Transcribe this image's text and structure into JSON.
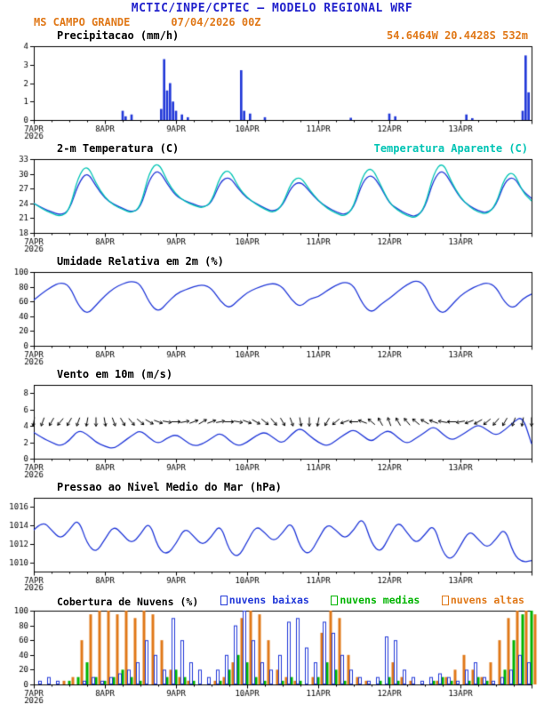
{
  "header": {
    "title": "MCTIC/INPE/CPTEC — MODELO REGIONAL WRF",
    "station": "MS CAMPO GRANDE",
    "run": "07/04/2026 00Z",
    "coords": "54.6464W 20.4428S 532m"
  },
  "colors": {
    "title_blue": "#2222cc",
    "orange": "#e07818",
    "line_blue": "#2138d8",
    "cyan": "#00c4b4",
    "green": "#00b400",
    "axis_black": "#000000"
  },
  "x_axis": {
    "hours_total": 168,
    "minor_step": 6,
    "tick_hours": [
      0,
      24,
      48,
      72,
      96,
      120,
      144
    ],
    "tick_labels": [
      "7APR",
      "8APR",
      "9APR",
      "10APR",
      "11APR",
      "12APR",
      "13APR"
    ],
    "year": "2026"
  },
  "chart_data": [
    {
      "id": "precip",
      "type": "bar",
      "title": "Precipitacao (mm/h)",
      "ylim": [
        0,
        4
      ],
      "yticks": [
        0,
        1,
        2,
        3,
        4
      ],
      "color": "#2138d8",
      "bars": [
        {
          "h": 30,
          "v": 0.5
        },
        {
          "h": 31,
          "v": 0.2
        },
        {
          "h": 33,
          "v": 0.3
        },
        {
          "h": 43,
          "v": 0.6
        },
        {
          "h": 44,
          "v": 3.3
        },
        {
          "h": 45,
          "v": 1.6
        },
        {
          "h": 46,
          "v": 2.0
        },
        {
          "h": 47,
          "v": 1.0
        },
        {
          "h": 48,
          "v": 0.5
        },
        {
          "h": 50,
          "v": 0.3
        },
        {
          "h": 52,
          "v": 0.15
        },
        {
          "h": 70,
          "v": 2.7
        },
        {
          "h": 71,
          "v": 0.5
        },
        {
          "h": 73,
          "v": 0.35
        },
        {
          "h": 78,
          "v": 0.15
        },
        {
          "h": 107,
          "v": 0.12
        },
        {
          "h": 120,
          "v": 0.35
        },
        {
          "h": 122,
          "v": 0.2
        },
        {
          "h": 146,
          "v": 0.3
        },
        {
          "h": 148,
          "v": 0.1
        },
        {
          "h": 165,
          "v": 0.5
        },
        {
          "h": 166,
          "v": 3.5
        },
        {
          "h": 167,
          "v": 1.5
        }
      ]
    },
    {
      "id": "temp",
      "type": "line",
      "title": "2-m Temperatura (C)",
      "ylim": [
        18,
        33
      ],
      "yticks": [
        18,
        21,
        24,
        27,
        30,
        33
      ],
      "x_step": 3,
      "series": [
        {
          "name": "2-m Temperatura (C)",
          "color": "#2138d8",
          "values": [
            24,
            23,
            22.3,
            21.6,
            22.5,
            28,
            30.5,
            27.5,
            25,
            23.8,
            23,
            22.2,
            23,
            29,
            31,
            28,
            25.5,
            24.5,
            23.8,
            23.2,
            24,
            28.5,
            29.5,
            27,
            25,
            24,
            23,
            22.3,
            23.5,
            27.5,
            28.5,
            26.5,
            24.5,
            23.2,
            22.3,
            21.6,
            23,
            28.5,
            30,
            27.5,
            24,
            22.8,
            21.8,
            21.2,
            23,
            29,
            31,
            28,
            25,
            23.5,
            22.5,
            22,
            23.5,
            28.5,
            29.5,
            26.5,
            25
          ]
        },
        {
          "name": "Temperatura Aparente (C)",
          "color": "#00c4b4",
          "values": [
            24,
            22.8,
            22,
            21.3,
            22.5,
            29.5,
            32,
            28,
            25.2,
            23.6,
            22.8,
            22,
            23.2,
            30.5,
            32.5,
            28.5,
            25.8,
            24.4,
            23.6,
            23,
            24.2,
            29.8,
            31,
            27.3,
            25.2,
            23.8,
            22.8,
            22,
            23.7,
            28.5,
            29.5,
            26.8,
            24.6,
            23,
            22,
            21.3,
            23.2,
            29.8,
            31.5,
            27.8,
            24.1,
            22.5,
            21.5,
            21,
            23.2,
            30.3,
            32.5,
            28.3,
            25.2,
            23.3,
            22.2,
            21.8,
            23.7,
            29.5,
            30.5,
            26.3,
            24.5
          ]
        }
      ]
    },
    {
      "id": "rh",
      "type": "line",
      "title": "Umidade Relativa em 2m (%)",
      "ylim": [
        0,
        100
      ],
      "yticks": [
        0,
        20,
        40,
        60,
        80,
        100
      ],
      "x_step": 3,
      "series": [
        {
          "name": "Umidade Relativa",
          "color": "#2138d8",
          "values": [
            62,
            72,
            80,
            86,
            82,
            55,
            42,
            55,
            68,
            78,
            84,
            88,
            84,
            58,
            45,
            58,
            70,
            76,
            80,
            83,
            78,
            60,
            50,
            62,
            72,
            78,
            82,
            85,
            80,
            62,
            52,
            64,
            66,
            75,
            82,
            87,
            82,
            56,
            44,
            56,
            64,
            74,
            83,
            89,
            83,
            55,
            42,
            55,
            68,
            76,
            82,
            86,
            80,
            58,
            50,
            64,
            70
          ]
        }
      ]
    },
    {
      "id": "wind",
      "type": "wind",
      "title": "Vento em 10m (m/s)",
      "ylim": [
        0,
        9
      ],
      "yticks": [
        0,
        2,
        4,
        6,
        8
      ],
      "x_step": 3,
      "color": "#2138d8",
      "barb_level": 4.5,
      "speed": [
        3.2,
        2.5,
        2,
        1.5,
        2.2,
        3.5,
        3,
        2,
        1.5,
        1.2,
        2,
        2.8,
        3.5,
        2.5,
        1.8,
        2.5,
        3,
        2.2,
        1.5,
        1.8,
        2.5,
        3.2,
        2.2,
        1.5,
        2,
        2.8,
        3.3,
        2.5,
        1.8,
        3,
        3.8,
        2.8,
        2,
        1.5,
        2.2,
        3,
        3.6,
        2.8,
        2,
        3,
        3.5,
        2.5,
        1.8,
        2.5,
        3.2,
        4,
        3,
        2.2,
        2.8,
        3.5,
        4.2,
        3.5,
        2.8,
        3.5,
        4.5,
        5.2,
        1.8
      ],
      "dirs": [
        10,
        20,
        30,
        40,
        30,
        20,
        10,
        0,
        350,
        340,
        330,
        320,
        310,
        300,
        290,
        280,
        270,
        260,
        250,
        240,
        250,
        260,
        270,
        280,
        290,
        300,
        310,
        320,
        330,
        340,
        350,
        0,
        10,
        30,
        50,
        70,
        90,
        110,
        130,
        150,
        160,
        150,
        140,
        130,
        120,
        110,
        100,
        90,
        80,
        70,
        60,
        50,
        40,
        30,
        20,
        10,
        0
      ]
    },
    {
      "id": "pres",
      "type": "line",
      "title": "Pressao ao Nivel Medio do Mar (hPa)",
      "ylim": [
        1009,
        1017
      ],
      "yticks": [
        1010,
        1012,
        1014,
        1016
      ],
      "x_step": 3,
      "series": [
        {
          "name": "Pressao ao Nivel Medio do Mar",
          "color": "#2138d8",
          "values": [
            1013.5,
            1014.5,
            1013.5,
            1012.5,
            1013.5,
            1014.8,
            1012,
            1011,
            1012.5,
            1014,
            1013,
            1012,
            1013,
            1014.5,
            1011.5,
            1010.8,
            1012,
            1013.8,
            1012.8,
            1011.8,
            1012.8,
            1014.2,
            1011.2,
            1010.5,
            1012.2,
            1014,
            1013.2,
            1012.2,
            1013.2,
            1014.5,
            1011.5,
            1010.8,
            1012.5,
            1014.2,
            1013.5,
            1012.5,
            1013.5,
            1015,
            1012,
            1011,
            1012.8,
            1014.5,
            1013.2,
            1012,
            1013,
            1014.2,
            1011,
            1010.2,
            1011.8,
            1013.5,
            1012.5,
            1011.5,
            1012.5,
            1013.8,
            1010.8,
            1010,
            1010.2
          ]
        }
      ]
    },
    {
      "id": "cloud",
      "type": "cloud",
      "title": "Cobertura de Nuvens (%)",
      "ylim": [
        0,
        100
      ],
      "yticks": [
        0,
        20,
        40,
        60,
        80,
        100
      ],
      "x_step": 3,
      "series": [
        {
          "label": "nuvens baixas",
          "color": "#2138d8",
          "style": "outline",
          "values": [
            0,
            5,
            10,
            5,
            0,
            0,
            5,
            10,
            5,
            10,
            15,
            20,
            30,
            60,
            40,
            20,
            90,
            60,
            30,
            20,
            10,
            20,
            40,
            80,
            100,
            60,
            30,
            20,
            40,
            85,
            90,
            50,
            30,
            85,
            70,
            40,
            20,
            10,
            5,
            10,
            65,
            60,
            20,
            10,
            5,
            10,
            15,
            10,
            5,
            20,
            30,
            10,
            5,
            10,
            20,
            40,
            30
          ]
        },
        {
          "label": "nuvens medias",
          "color": "#00b400",
          "style": "fill",
          "values": [
            0,
            0,
            0,
            0,
            5,
            10,
            30,
            10,
            5,
            10,
            20,
            10,
            5,
            0,
            0,
            10,
            20,
            10,
            5,
            0,
            0,
            5,
            20,
            40,
            30,
            10,
            5,
            0,
            5,
            10,
            5,
            0,
            10,
            30,
            20,
            5,
            0,
            0,
            0,
            5,
            10,
            5,
            0,
            0,
            0,
            5,
            10,
            5,
            0,
            5,
            10,
            5,
            0,
            20,
            60,
            95,
            100
          ]
        },
        {
          "label": "nuvens altas",
          "color": "#e07818",
          "style": "fill",
          "values": [
            0,
            0,
            0,
            5,
            10,
            60,
            95,
            100,
            100,
            95,
            100,
            90,
            100,
            95,
            60,
            20,
            10,
            5,
            0,
            0,
            5,
            10,
            30,
            90,
            100,
            95,
            60,
            20,
            10,
            5,
            0,
            10,
            70,
            100,
            90,
            40,
            10,
            5,
            0,
            0,
            30,
            10,
            5,
            0,
            0,
            5,
            10,
            20,
            40,
            20,
            10,
            30,
            60,
            90,
            100,
            100,
            95
          ]
        }
      ]
    }
  ]
}
